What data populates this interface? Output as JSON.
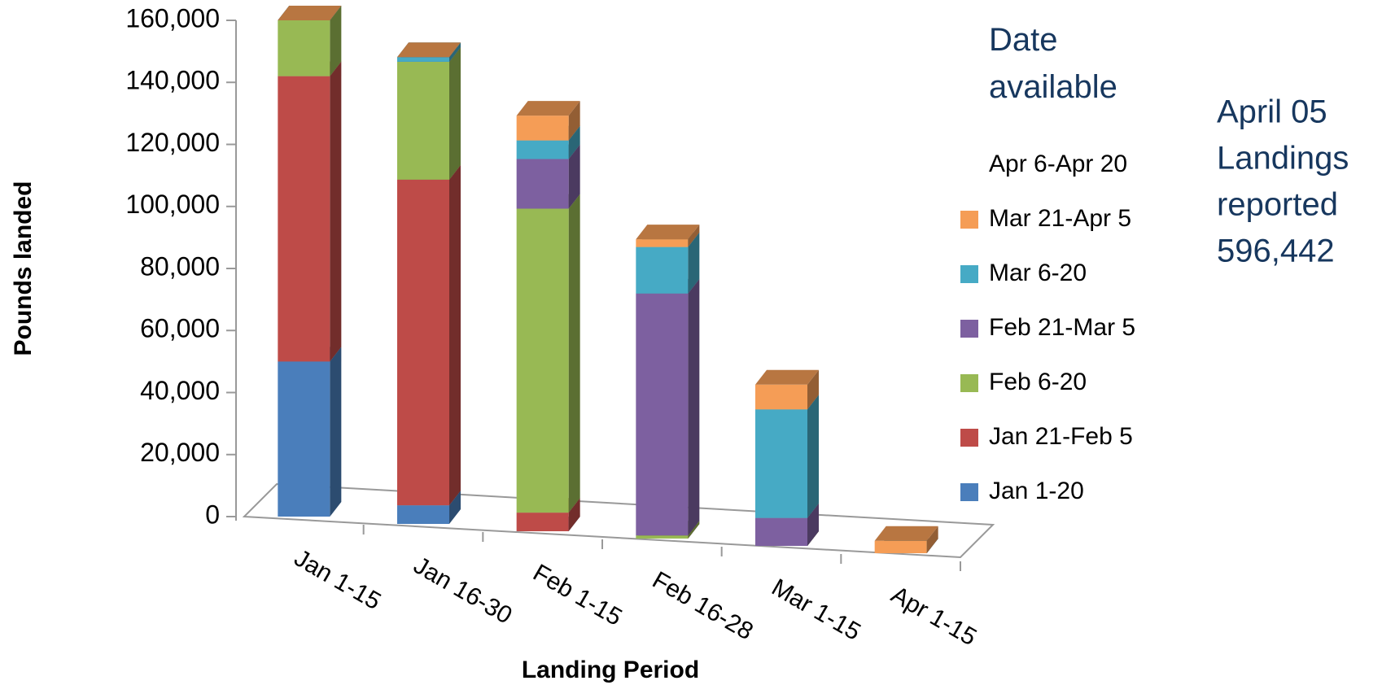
{
  "chart_data": {
    "type": "bar3d_stacked",
    "y_label": "Pounds landed",
    "x_label": "Landing Period",
    "legend_title": "Date available",
    "annotation": [
      "April 05",
      "Landings",
      "reported",
      "596,442"
    ],
    "categories": [
      "Jan 1-15",
      "Jan 16-30",
      "Feb 1-15",
      "Feb 16-28",
      "Mar 1-15",
      "Apr 1-15"
    ],
    "series": [
      {
        "name": "Jan 1-20",
        "color": "#4a7ebb",
        "values": [
          50000,
          6000,
          0,
          0,
          0,
          0
        ]
      },
      {
        "name": "Jan 21-Feb 5",
        "color": "#be4b48",
        "values": [
          92000,
          105000,
          6000,
          0,
          0,
          0
        ]
      },
      {
        "name": "Feb 6-20",
        "color": "#98b954",
        "values": [
          18000,
          38000,
          98000,
          1000,
          0,
          0
        ]
      },
      {
        "name": "Feb 21-Mar 5",
        "color": "#7d60a0",
        "values": [
          0,
          0,
          16000,
          78000,
          9000,
          0
        ]
      },
      {
        "name": "Mar 6-20",
        "color": "#46aac5",
        "values": [
          0,
          1500,
          6000,
          15000,
          35000,
          0
        ]
      },
      {
        "name": "Mar 21-Apr 5",
        "color": "#f59d56",
        "values": [
          0,
          0,
          8000,
          2500,
          8000,
          4000
        ]
      },
      {
        "name": "Apr 6-Apr 20",
        "values": [
          null,
          null,
          null,
          null,
          null,
          null
        ]
      }
    ],
    "ylim": [
      0,
      160000
    ],
    "yticks": [
      0,
      {
        "value": 20000,
        "label": "20,000"
      },
      {
        "value": 40000,
        "label": "40,000"
      },
      {
        "value": 60000,
        "label": "60,000"
      },
      {
        "value": 80000,
        "label": "80,000"
      },
      {
        "value": 100000,
        "label": "100,000"
      },
      {
        "value": 120000,
        "label": "120,000"
      },
      {
        "value": 140000,
        "label": "140,000"
      },
      {
        "value": 160000,
        "label": "160,000"
      }
    ]
  }
}
